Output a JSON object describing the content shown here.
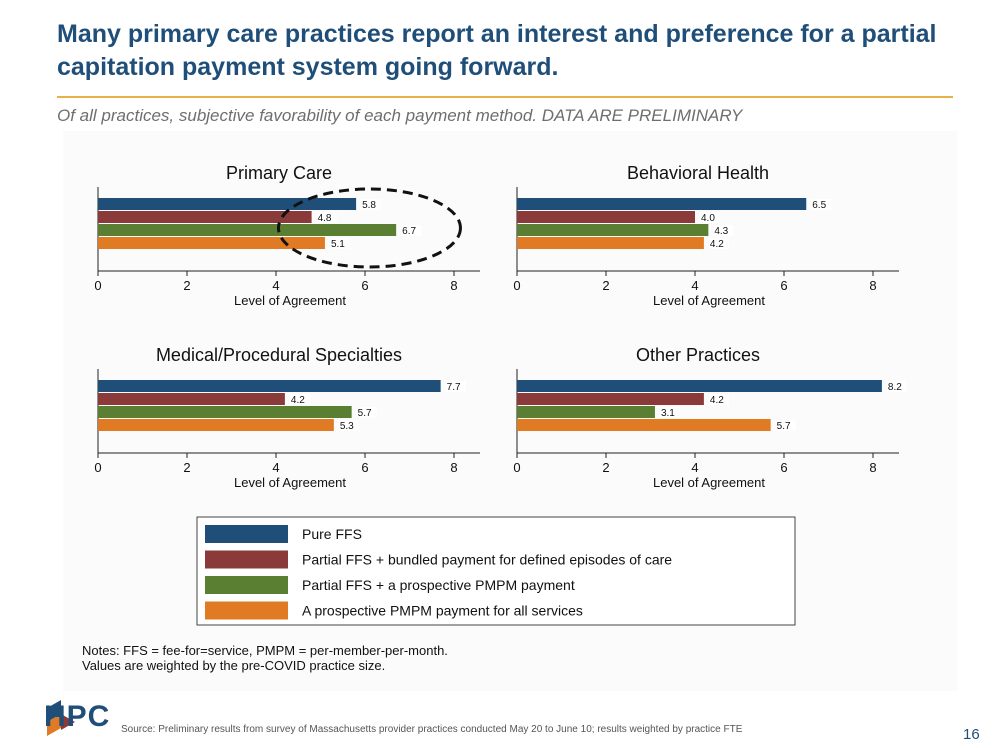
{
  "title": "Many primary care practices report an interest and preference for a partial capitation payment system going forward.",
  "subtitle": "Of all practices, subjective favorability of each payment method. DATA ARE PRELIMINARY",
  "chart_data": {
    "type": "bar",
    "orientation": "horizontal",
    "xlabel": "Level of Agreement",
    "xlim": [
      0,
      8.5
    ],
    "xticks": [
      0,
      2,
      4,
      6,
      8
    ],
    "xtick_labels": [
      "0",
      "2",
      "4",
      "6",
      "8"
    ],
    "grid": false,
    "series": [
      {
        "name": "Pure FFS",
        "color": "#1f4e79"
      },
      {
        "name": "Partial FFS + bundled payment for defined episodes of care",
        "color": "#8b3a3a"
      },
      {
        "name": "Partial FFS + a prospective PMPM payment",
        "color": "#5a7f32"
      },
      {
        "name": "A prospective PMPM payment for all services",
        "color": "#e07b24"
      }
    ],
    "panels": [
      {
        "title": "Primary Care",
        "values": [
          5.8,
          4.8,
          6.7,
          5.1
        ],
        "labels": [
          "5.8",
          "4.8",
          "6.7",
          "5.1"
        ],
        "highlight": true
      },
      {
        "title": "Behavioral Health",
        "values": [
          6.5,
          4.0,
          4.3,
          4.2
        ],
        "labels": [
          "6.5",
          "4.0",
          "4.3",
          "4.2"
        ]
      },
      {
        "title": "Medical/Procedural Specialties",
        "values": [
          7.7,
          4.2,
          5.7,
          5.3
        ],
        "labels": [
          "7.7",
          "4.2",
          "5.7",
          "5.3"
        ]
      },
      {
        "title": "Other Practices",
        "values": [
          8.2,
          4.2,
          3.1,
          5.7
        ],
        "labels": [
          "8.2",
          "4.2",
          "3.1",
          "5.7"
        ]
      }
    ],
    "legend_position": "bottom"
  },
  "notes": {
    "line1": "Notes: FFS = fee-for=service, PMPM = per-member-per-month.",
    "line2": "Values are weighted by the pre-COVID practice size."
  },
  "footer": {
    "logo_text": "HPC",
    "source": "Source: Preliminary results from survey of Massachusetts provider practices conducted May 20 to June 10; results weighted by practice FTE",
    "page_number": "16"
  }
}
